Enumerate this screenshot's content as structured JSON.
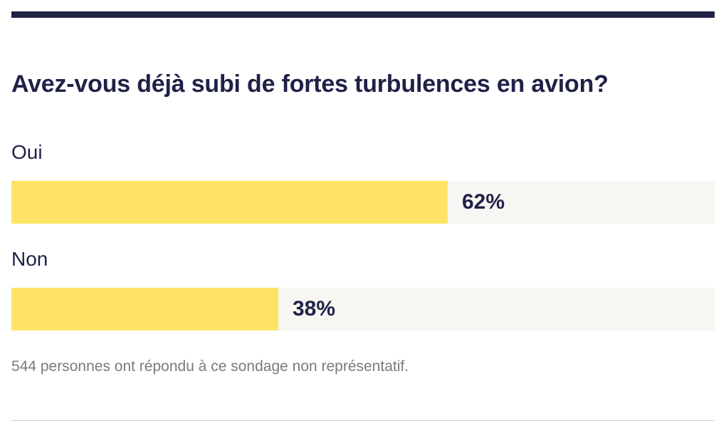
{
  "poll": {
    "question": "Avez-vous déjà subi de fortes turbulences en avion?",
    "footnote": "544 personnes ont répondu à ce sondage non représentatif."
  },
  "colors": {
    "rule": "#1f2147",
    "bar_fill": "#ffe366",
    "bar_track": "#f7f6f3",
    "text": "#1f2147",
    "footnote": "#7a7a7a"
  },
  "chart_data": {
    "type": "bar",
    "orientation": "horizontal",
    "title": "Avez-vous déjà subi de fortes turbulences en avion?",
    "categories": [
      "Oui",
      "Non"
    ],
    "values": [
      62,
      38
    ],
    "value_labels": [
      "62%",
      "38%"
    ],
    "xlim": [
      0,
      100
    ],
    "grid": false
  }
}
